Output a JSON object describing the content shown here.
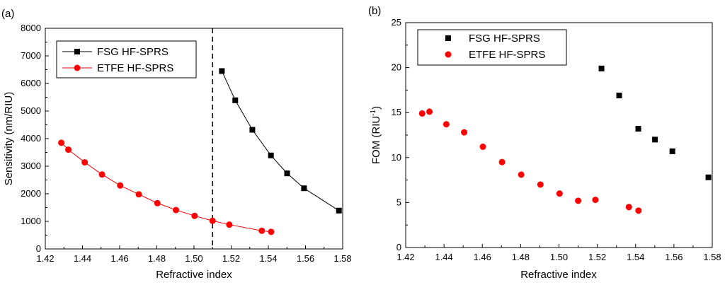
{
  "chart_data": [
    {
      "panel": "(a)",
      "type": "line",
      "xlabel": "Refractive index",
      "ylabel": "Sensitivity (nm/RIU)",
      "xlim": [
        1.42,
        1.58
      ],
      "ylim": [
        0,
        8000
      ],
      "xticks": [
        "1.42",
        "1.44",
        "1.46",
        "1.48",
        "1.50",
        "1.52",
        "1.54",
        "1.56",
        "1.58"
      ],
      "yticks": [
        "0",
        "1000",
        "2000",
        "3000",
        "4000",
        "5000",
        "6000",
        "7000",
        "8000"
      ],
      "vline": 1.51,
      "legend_position": "top-left",
      "series": [
        {
          "name": "FSG HF-SPRS",
          "color": "#000000",
          "marker": "square",
          "x": [
            1.515,
            1.5222,
            1.5314,
            1.5414,
            1.5501,
            1.5592,
            1.578
          ],
          "y": [
            6450,
            5390,
            4320,
            3390,
            2740,
            2200,
            1390
          ]
        },
        {
          "name": "ETFE HF-SPRS",
          "color": "#ff0000",
          "marker": "circle",
          "x": [
            1.4286,
            1.4324,
            1.4412,
            1.4505,
            1.4603,
            1.4703,
            1.4803,
            1.4903,
            1.5003,
            1.51,
            1.519,
            1.5365,
            1.5415
          ],
          "y": [
            3850,
            3600,
            3140,
            2700,
            2300,
            1980,
            1660,
            1410,
            1200,
            1020,
            880,
            660,
            620
          ]
        }
      ]
    },
    {
      "panel": "(b)",
      "type": "scatter",
      "xlabel": "Refractive index",
      "ylabel": "FOM (RIU",
      "ylabel_sup": "-1",
      "ylabel_end": ")",
      "xlim": [
        1.42,
        1.58
      ],
      "ylim": [
        0,
        25
      ],
      "xticks": [
        "1.42",
        "1.44",
        "1.46",
        "1.48",
        "1.50",
        "1.52",
        "1.54",
        "1.56",
        "1.58"
      ],
      "yticks": [
        "0",
        "5",
        "10",
        "15",
        "20",
        "25"
      ],
      "legend_position": "top-left",
      "series": [
        {
          "name": "FSG HF-SPRS",
          "color": "#000000",
          "marker": "square",
          "x": [
            1.5222,
            1.5314,
            1.5414,
            1.5501,
            1.5592,
            1.578
          ],
          "y": [
            19.9,
            16.9,
            13.2,
            12.0,
            10.7,
            7.8
          ]
        },
        {
          "name": "ETFE HF-SPRS",
          "color": "#ff0000",
          "marker": "circle",
          "x": [
            1.4286,
            1.4324,
            1.4412,
            1.4505,
            1.4603,
            1.4703,
            1.4803,
            1.4903,
            1.5003,
            1.51,
            1.519,
            1.5365,
            1.5415
          ],
          "y": [
            14.9,
            15.1,
            13.7,
            12.8,
            11.2,
            9.5,
            8.1,
            7.0,
            6.0,
            5.2,
            5.3,
            4.5,
            4.1
          ]
        }
      ]
    }
  ]
}
